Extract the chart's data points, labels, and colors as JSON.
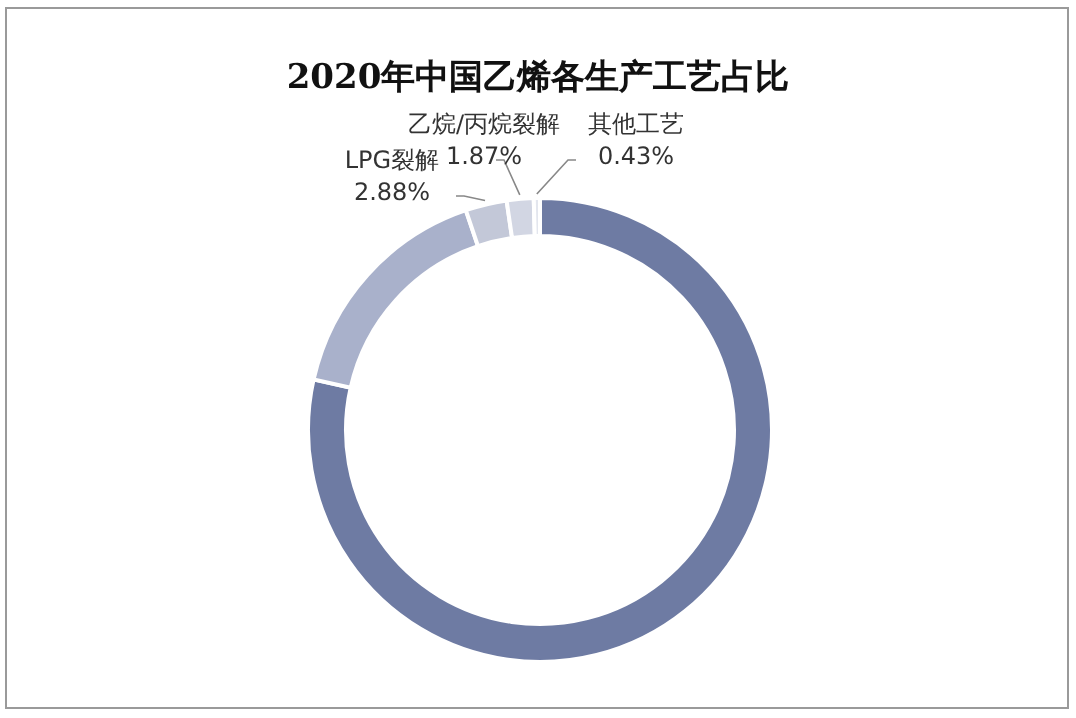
{
  "chart_data": {
    "type": "donut",
    "title": "2020年中国乙烯各生产工艺占比",
    "categories": [
      null,
      null,
      "LPG裂解",
      "乙烷/丙烷裂解",
      "其他工艺"
    ],
    "values": [
      78.5,
      16.32,
      2.88,
      1.87,
      0.43
    ],
    "colors": [
      "#6e7ba3",
      "#a9b1cb",
      "#c3c8d8",
      "#d2d6e3",
      "#e3e6ee"
    ],
    "value_labels": [
      null,
      null,
      "2.88%",
      "1.87%",
      "0.43%"
    ]
  }
}
